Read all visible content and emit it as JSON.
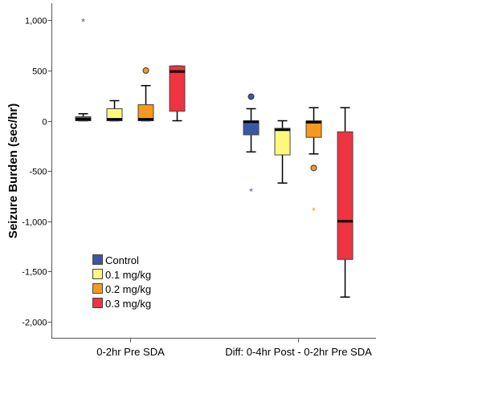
{
  "chart_data": {
    "type": "boxplot",
    "title": "",
    "xlabel": "",
    "ylabel": "Seizure Burden (sec/hr)",
    "ylim": [
      -2200,
      1200
    ],
    "yticks": [
      1000,
      500,
      0,
      -500,
      -1000,
      -1500,
      -2000
    ],
    "ytick_labels": [
      "1,000",
      "500",
      "0",
      "-500",
      "-1,000",
      "-1,500",
      "-2,000"
    ],
    "grid": false,
    "legend_position": "bottom-left",
    "categories": [
      "0-2hr Pre SDA",
      "Diff: 0-4hr Post - 0-2hr Pre SDA"
    ],
    "series": [
      {
        "name": "Control",
        "color": "#3A57A7",
        "boxes": [
          {
            "whisker_low": 0,
            "q1": 0,
            "median": 15,
            "q3": 40,
            "whisker_high": 70,
            "outliers": [],
            "extremes": [
              990
            ]
          },
          {
            "whisker_low": -310,
            "q1": -140,
            "median": -10,
            "q3": 0,
            "whisker_high": 120,
            "outliers": [
              240
            ],
            "extremes": [
              -700
            ]
          }
        ]
      },
      {
        "name": "0.1 mg/kg",
        "color": "#FBF87C",
        "boxes": [
          {
            "whisker_low": 0,
            "q1": 0,
            "median": 15,
            "q3": 120,
            "whisker_high": 200,
            "outliers": [],
            "extremes": []
          },
          {
            "whisker_low": -620,
            "q1": -340,
            "median": -90,
            "q3": -75,
            "whisker_high": 0,
            "outliers": [],
            "extremes": []
          }
        ]
      },
      {
        "name": "0.2 mg/kg",
        "color": "#F7991D",
        "boxes": [
          {
            "whisker_low": 0,
            "q1": 0,
            "median": 15,
            "q3": 160,
            "whisker_high": 350,
            "outliers": [
              500
            ],
            "extremes": []
          },
          {
            "whisker_low": -330,
            "q1": -165,
            "median": -15,
            "q3": 0,
            "whisker_high": 130,
            "outliers": [
              -470
            ],
            "extremes": [
              -890
            ]
          }
        ]
      },
      {
        "name": "0.3 mg/kg",
        "color": "#EF3340",
        "boxes": [
          {
            "whisker_low": 0,
            "q1": 95,
            "median": 490,
            "q3": 545,
            "whisker_high": 545,
            "outliers": [],
            "extremes": []
          },
          {
            "whisker_low": -1755,
            "q1": -1380,
            "median": -1000,
            "q3": -110,
            "whisker_high": 130,
            "outliers": [],
            "extremes": []
          }
        ]
      }
    ]
  }
}
